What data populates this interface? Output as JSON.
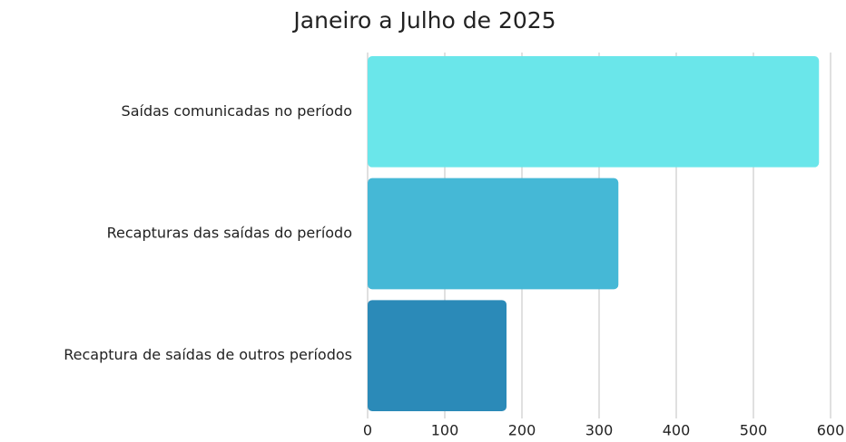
{
  "chart_data": {
    "type": "bar",
    "orientation": "horizontal",
    "title": "Janeiro a Julho de 2025",
    "categories": [
      "Saídas comunicadas no período",
      "Recapturas das saídas do período",
      "Recaptura de saídas de outros períodos"
    ],
    "values": [
      585,
      325,
      180
    ],
    "colors": [
      "#6ae6ea",
      "#45b8d6",
      "#2b8ab8"
    ],
    "xlim": [
      0,
      600
    ],
    "xticks": [
      0,
      100,
      200,
      300,
      400,
      500,
      600
    ],
    "grid": true
  }
}
